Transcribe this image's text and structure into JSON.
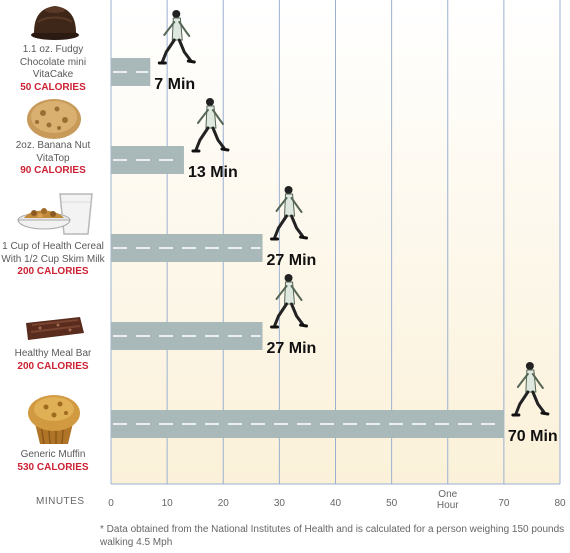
{
  "chart_data": {
    "type": "bar",
    "orientation": "horizontal",
    "categories": [
      {
        "name": "1.1 oz. Fudgy Chocolate mini VitaCake",
        "calories": "50 CALORIES"
      },
      {
        "name": "2oz. Banana Nut VitaTop",
        "calories": "90 CALORIES"
      },
      {
        "name": "1 Cup of Health Cereal With 1/2 Cup Skim Milk",
        "calories": "200 CALORIES"
      },
      {
        "name": "Healthy Meal Bar",
        "calories": "200 CALORIES"
      },
      {
        "name": "Generic Muffin",
        "calories": "530 CALORIES"
      }
    ],
    "values": [
      7,
      13,
      27,
      27,
      70
    ],
    "data_labels": [
      "7 Min",
      "13 Min",
      "27 Min",
      "27 Min",
      "70 Min"
    ],
    "xlabel": "MINUTES",
    "xlim": [
      0,
      80
    ],
    "xticks": [
      "0",
      "10",
      "20",
      "30",
      "40",
      "50",
      "One Hour",
      "70",
      "80"
    ],
    "grid": true
  },
  "footnote": "* Data obtained from the National Institutes of Health and is calculated for a person weighing 150 pounds walking 4.5 Mph",
  "colors": {
    "bar": "#a9b9b9",
    "grid": "#9bb0d0",
    "calories": "#cc2233",
    "background_top": "#ffffff",
    "background_bottom": "#fbf1d9"
  },
  "icons": [
    "chocolate-cake-icon",
    "vitatop-muffin-top-icon",
    "cereal-bowl-with-milk-icon",
    "meal-bar-icon",
    "muffin-icon",
    "walking-person-icon"
  ]
}
